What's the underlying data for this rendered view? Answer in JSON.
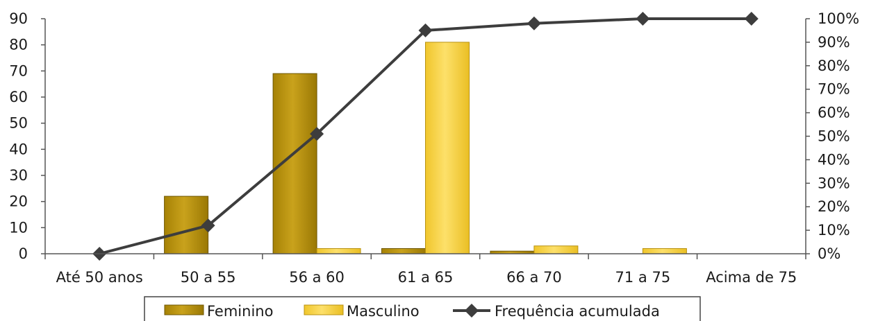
{
  "chart_data": {
    "type": "bar",
    "categories": [
      "Até 50 anos",
      "50 a 55",
      "56 a 60",
      "61 a 65",
      "66 a 70",
      "71 a 75",
      "Acima de 75"
    ],
    "series": [
      {
        "name": "Feminino",
        "type": "bar",
        "axis": "left",
        "color": "#b8920f",
        "values": [
          0,
          22,
          69,
          2,
          1,
          0,
          0
        ]
      },
      {
        "name": "Masculino",
        "type": "bar",
        "axis": "left",
        "color": "#f5cf3c",
        "values": [
          0,
          0,
          2,
          81,
          3,
          2,
          0
        ]
      },
      {
        "name": "Frequência acumulada",
        "type": "line",
        "axis": "right",
        "color": "#3d3d3d",
        "values": [
          0,
          12,
          51,
          95,
          98,
          100,
          100
        ]
      }
    ],
    "yaxis_left": {
      "min": 0,
      "max": 90,
      "step": 10,
      "ticks": [
        "0",
        "10",
        "20",
        "30",
        "40",
        "50",
        "60",
        "70",
        "80",
        "90"
      ]
    },
    "yaxis_right": {
      "min": 0,
      "max": 100,
      "step": 10,
      "ticks": [
        "0%",
        "10%",
        "20%",
        "30%",
        "40%",
        "50%",
        "60%",
        "70%",
        "80%",
        "90%",
        "100%"
      ]
    },
    "title": "",
    "xlabel": "",
    "ylabel": "",
    "grid": false,
    "legend_position": "bottom"
  }
}
